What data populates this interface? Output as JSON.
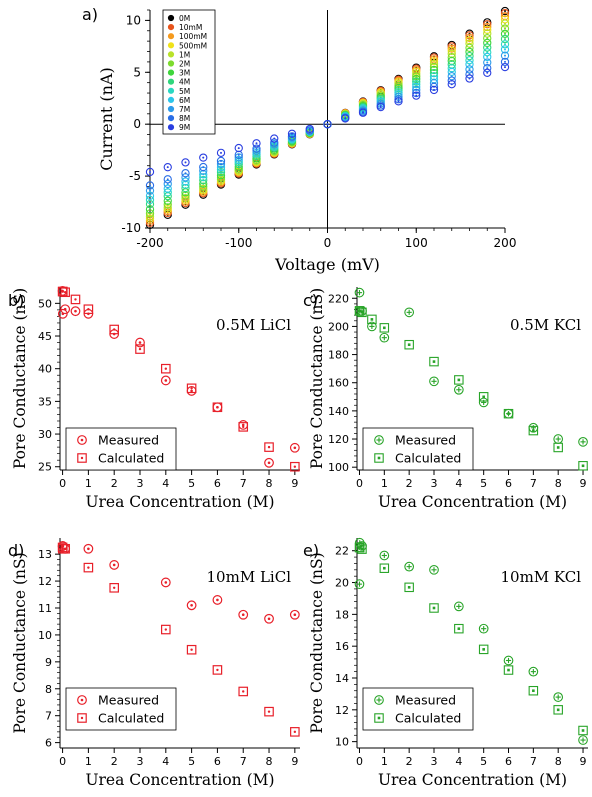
{
  "figure": {
    "background": "#ffffff"
  },
  "chart_data": [
    {
      "id": "a",
      "panel_label": "a)",
      "type": "scatter",
      "xlabel": "Voltage (mV)",
      "ylabel": "Current (nA)",
      "xlim": [
        -200,
        200
      ],
      "ylim": [
        -10,
        11
      ],
      "xticks": [
        -200,
        -100,
        0,
        100,
        200
      ],
      "yticks": [
        -10,
        -5,
        0,
        5,
        10
      ],
      "x": [
        -200,
        -180,
        -160,
        -140,
        -120,
        -100,
        -80,
        -60,
        -40,
        -20,
        0,
        20,
        40,
        60,
        80,
        100,
        120,
        140,
        160,
        180,
        200
      ],
      "legend_position": "top-left",
      "series": [
        {
          "name": "0M",
          "color": "#000000",
          "slope_neg": 0.0485,
          "slope_pos": 0.0545
        },
        {
          "name": "10mM",
          "color": "#e8541c",
          "slope_neg": 0.0475,
          "slope_pos": 0.0535
        },
        {
          "name": "100mM",
          "color": "#f59a1e",
          "slope_neg": 0.0465,
          "slope_pos": 0.052
        },
        {
          "name": "500mM",
          "color": "#f0e21a",
          "slope_neg": 0.0455,
          "slope_pos": 0.0505
        },
        {
          "name": "1M",
          "color": "#b9e22a",
          "slope_neg": 0.0445,
          "slope_pos": 0.0485
        },
        {
          "name": "2M",
          "color": "#7ddc2e",
          "slope_neg": 0.043,
          "slope_pos": 0.046
        },
        {
          "name": "3M",
          "color": "#3fd63c",
          "slope_neg": 0.041,
          "slope_pos": 0.0435
        },
        {
          "name": "4M",
          "color": "#2fd67c",
          "slope_neg": 0.0385,
          "slope_pos": 0.041
        },
        {
          "name": "5M",
          "color": "#2ad8c2",
          "slope_neg": 0.0365,
          "slope_pos": 0.0385
        },
        {
          "name": "6M",
          "color": "#2cc6ea",
          "slope_neg": 0.0345,
          "slope_pos": 0.036
        },
        {
          "name": "7M",
          "color": "#2d9cea",
          "slope_neg": 0.032,
          "slope_pos": 0.033
        },
        {
          "name": "8M",
          "color": "#2a6ee6",
          "slope_neg": 0.0295,
          "slope_pos": 0.03
        },
        {
          "name": "9M",
          "color": "#2a3ee0",
          "slope_neg": 0.023,
          "slope_pos": 0.0275
        }
      ]
    },
    {
      "id": "b",
      "panel_label": "b)",
      "type": "scatter",
      "annotation": "0.5M LiCl",
      "xlabel": "Urea Concentration (M)",
      "ylabel": "Pore Conductance (nS)",
      "xlim": [
        -0.1,
        9.2
      ],
      "ylim": [
        24.5,
        52.5
      ],
      "xticks": [
        0,
        1,
        2,
        3,
        4,
        5,
        6,
        7,
        8,
        9
      ],
      "yticks": [
        25,
        30,
        35,
        40,
        45,
        50
      ],
      "color": "#e8202a",
      "legend_position": "bottom-left",
      "series": [
        {
          "name": "Measured",
          "marker": "circle",
          "x": [
            0,
            0.01,
            0.1,
            0.5,
            1,
            2,
            3,
            4,
            5,
            6,
            7,
            8,
            9
          ],
          "y": [
            51.9,
            48.4,
            49.1,
            48.8,
            48.4,
            45.3,
            44.0,
            38.2,
            36.6,
            34.1,
            31.4,
            25.6,
            27.9
          ]
        },
        {
          "name": "Calculated",
          "marker": "square",
          "x": [
            0,
            0.01,
            0.1,
            0.5,
            1,
            2,
            3,
            4,
            5,
            6,
            7,
            8,
            9
          ],
          "y": [
            51.8,
            51.8,
            51.7,
            50.6,
            49.1,
            46.0,
            43.0,
            40.0,
            37.0,
            34.1,
            31.1,
            28.0,
            25.0
          ]
        }
      ]
    },
    {
      "id": "c",
      "panel_label": "c)",
      "type": "scatter",
      "annotation": "0.5M KCl",
      "xlabel": "Urea Concentration (M)",
      "ylabel": "Pore Conductance (nS)",
      "xlim": [
        -0.1,
        9.2
      ],
      "ylim": [
        98,
        228
      ],
      "xticks": [
        0,
        1,
        2,
        3,
        4,
        5,
        6,
        7,
        8,
        9
      ],
      "yticks": [
        100,
        120,
        140,
        160,
        180,
        200,
        220
      ],
      "color": "#28a428",
      "legend_position": "bottom-left",
      "series": [
        {
          "name": "Measured",
          "marker": "circle-plus",
          "x": [
            0,
            0.01,
            0.1,
            0.5,
            1,
            2,
            3,
            4,
            5,
            6,
            7,
            8,
            9
          ],
          "y": [
            224,
            211,
            211,
            200,
            192,
            210,
            161,
            155,
            146,
            138,
            128,
            120,
            118
          ]
        },
        {
          "name": "Calculated",
          "marker": "square-dot",
          "x": [
            0,
            0.01,
            0.1,
            0.5,
            1,
            2,
            3,
            4,
            5,
            6,
            7,
            8,
            9
          ],
          "y": [
            211,
            211,
            210,
            205,
            199,
            187,
            175,
            162,
            150,
            138,
            126,
            114,
            101
          ]
        }
      ]
    },
    {
      "id": "d",
      "panel_label": "d)",
      "type": "scatter",
      "annotation": "10mM LiCl",
      "xlabel": "Urea Concentration (M)",
      "ylabel": "Pore Conductance (nS)",
      "xlim": [
        -0.1,
        9.2
      ],
      "ylim": [
        5.8,
        13.6
      ],
      "xticks": [
        0,
        1,
        2,
        3,
        4,
        5,
        6,
        7,
        8,
        9
      ],
      "yticks": [
        6,
        7,
        8,
        9,
        10,
        11,
        12,
        13
      ],
      "color": "#e8202a",
      "legend_position": "bottom-left",
      "series": [
        {
          "name": "Measured",
          "marker": "circle",
          "x": [
            0,
            0.01,
            0.1,
            1,
            2,
            4,
            5,
            6,
            7,
            8,
            9
          ],
          "y": [
            13.3,
            13.3,
            13.2,
            13.2,
            12.6,
            11.95,
            11.1,
            11.3,
            10.75,
            10.6,
            10.75
          ]
        },
        {
          "name": "Calculated",
          "marker": "square",
          "x": [
            0,
            0.01,
            0.1,
            1,
            2,
            4,
            5,
            6,
            7,
            8,
            9
          ],
          "y": [
            13.25,
            13.2,
            13.2,
            12.5,
            11.75,
            10.2,
            9.45,
            8.7,
            7.9,
            7.15,
            6.4
          ]
        }
      ]
    },
    {
      "id": "e",
      "panel_label": "e)",
      "type": "scatter",
      "annotation": "10mM KCl",
      "xlabel": "Urea Concentration (M)",
      "ylabel": "Pore Conductance (nS)",
      "xlim": [
        -0.1,
        9.2
      ],
      "ylim": [
        9.6,
        22.8
      ],
      "xticks": [
        0,
        1,
        2,
        3,
        4,
        5,
        6,
        7,
        8,
        9
      ],
      "yticks": [
        10,
        12,
        14,
        16,
        18,
        20,
        22
      ],
      "color": "#28a428",
      "legend_position": "bottom-left",
      "series": [
        {
          "name": "Measured",
          "marker": "circle-plus",
          "x": [
            0,
            0.01,
            0.1,
            1,
            2,
            3,
            4,
            5,
            6,
            7,
            8,
            9
          ],
          "y": [
            19.9,
            22.5,
            22.3,
            21.7,
            21.0,
            20.8,
            18.5,
            17.1,
            15.1,
            14.4,
            12.8,
            10.1
          ]
        },
        {
          "name": "Calculated",
          "marker": "square-dot",
          "x": [
            0,
            0.01,
            0.1,
            1,
            2,
            3,
            4,
            5,
            6,
            7,
            8,
            9
          ],
          "y": [
            22.2,
            22.2,
            22.1,
            20.9,
            19.7,
            18.4,
            17.1,
            15.8,
            14.5,
            13.2,
            12.0,
            10.7
          ]
        }
      ]
    }
  ]
}
